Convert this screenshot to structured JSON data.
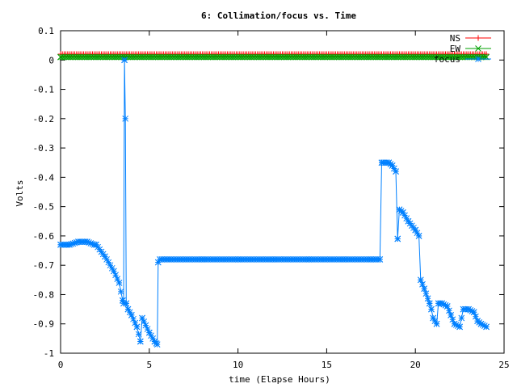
{
  "chart_data": {
    "type": "line",
    "title": "6: Collimation/focus vs. Time",
    "xlabel": "time (Elapse Hours)",
    "ylabel": "Volts",
    "xlim": [
      0,
      25
    ],
    "ylim": [
      -1,
      0.1
    ],
    "xticks": [
      0,
      5,
      10,
      15,
      20,
      25
    ],
    "xtick_labels": [
      "0",
      "5",
      "10",
      "15",
      "20",
      "25"
    ],
    "yticks": [
      0.1,
      0,
      -0.1,
      -0.2,
      -0.3,
      -0.4,
      -0.5,
      -0.6,
      -0.7,
      -0.8,
      -0.9,
      -1
    ],
    "ytick_labels": [
      "0.1",
      "0",
      "-0.1",
      "-0.2",
      "-0.3",
      "-0.4",
      "-0.5",
      "-0.6",
      "-0.7",
      "-0.8",
      "-0.9",
      "-1"
    ],
    "grid": false,
    "legend_position": "top-right",
    "series": [
      {
        "name": "NS",
        "color": "#ff0000",
        "marker": "plus",
        "x": [
          0,
          24
        ],
        "y": [
          0.02,
          0.02
        ]
      },
      {
        "name": "EW",
        "color": "#00a000",
        "marker": "cross",
        "x": [
          0,
          24
        ],
        "y": [
          0.01,
          0.01
        ]
      },
      {
        "name": "focus",
        "color": "#0080ff",
        "marker": "star",
        "x": [
          0,
          0.5,
          1.0,
          1.5,
          1.9,
          2.0,
          2.5,
          3.0,
          3.3,
          3.5,
          3.55,
          3.6,
          3.65,
          3.7,
          3.8,
          4.0,
          4.3,
          4.5,
          4.6,
          5.0,
          5.3,
          5.45,
          5.5,
          5.6,
          6.0,
          8.0,
          10.0,
          12.0,
          14.0,
          16.0,
          17.5,
          18.0,
          18.1,
          18.2,
          18.5,
          18.7,
          18.9,
          19.0,
          19.1,
          19.3,
          19.6,
          20.0,
          20.2,
          20.3,
          20.5,
          20.8,
          20.9,
          21.0,
          21.2,
          21.3,
          21.5,
          21.8,
          22.0,
          22.2,
          22.5,
          22.7,
          23.0,
          23.3,
          23.5,
          23.7,
          24.0
        ],
        "y": [
          -0.63,
          -0.63,
          -0.62,
          -0.62,
          -0.63,
          -0.63,
          -0.67,
          -0.72,
          -0.76,
          -0.82,
          -0.83,
          0.0,
          -0.2,
          -0.83,
          -0.85,
          -0.87,
          -0.91,
          -0.96,
          -0.88,
          -0.93,
          -0.96,
          -0.97,
          -0.69,
          -0.68,
          -0.68,
          -0.68,
          -0.68,
          -0.68,
          -0.68,
          -0.68,
          -0.68,
          -0.68,
          -0.35,
          -0.35,
          -0.35,
          -0.36,
          -0.38,
          -0.61,
          -0.51,
          -0.52,
          -0.55,
          -0.58,
          -0.6,
          -0.75,
          -0.78,
          -0.83,
          -0.85,
          -0.88,
          -0.9,
          -0.83,
          -0.83,
          -0.84,
          -0.87,
          -0.9,
          -0.91,
          -0.85,
          -0.85,
          -0.86,
          -0.89,
          -0.9,
          -0.91
        ]
      }
    ]
  }
}
